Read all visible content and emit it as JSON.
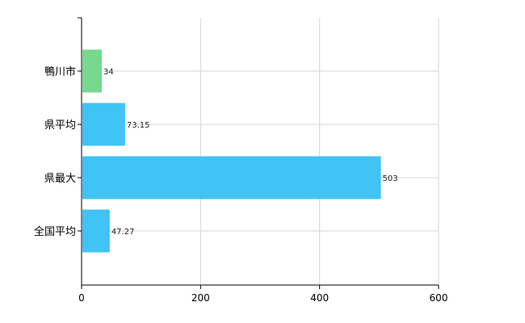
{
  "chart_data": {
    "type": "bar",
    "orientation": "horizontal",
    "categories": [
      "鴨川市",
      "県平均",
      "県最大",
      "全国平均"
    ],
    "values": [
      34,
      73.15,
      503,
      47.27
    ],
    "value_labels": [
      "34",
      "73.15",
      "503",
      "47.27"
    ],
    "bar_colors": [
      "#77d88f",
      "#40c3f5",
      "#40c3f5",
      "#40c3f5"
    ],
    "xlim": [
      0,
      600
    ],
    "x_ticks": [
      0,
      200,
      400,
      600
    ],
    "grid": true,
    "title": "",
    "xlabel": "",
    "ylabel": ""
  }
}
